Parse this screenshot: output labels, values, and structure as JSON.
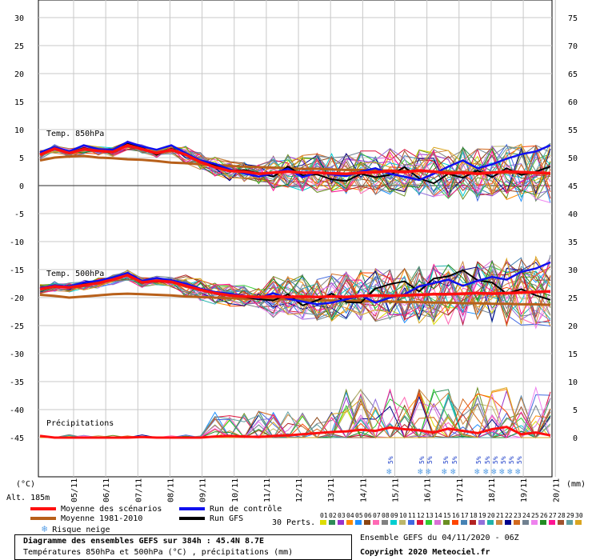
{
  "chart_data": {
    "type": "line",
    "left_axis_ticks": [
      "30",
      "25",
      "20",
      "15",
      "10",
      "5",
      "0",
      "-5",
      "-10",
      "-15",
      "-20",
      "-25",
      "-30",
      "-35",
      "-40",
      "-45"
    ],
    "right_axis_ticks": [
      "75",
      "70",
      "65",
      "60",
      "55",
      "50",
      "45",
      "40",
      "35",
      "30",
      "25",
      "20",
      "15",
      "10",
      "5",
      "0"
    ],
    "left_axis_unit": "(°C)",
    "right_axis_unit": "(mm)",
    "altitude_label": "Alt. 185m",
    "x_tick_labels": [
      "05/11",
      "06/11",
      "07/11",
      "08/11",
      "09/11",
      "10/11",
      "11/11",
      "12/11",
      "13/11",
      "14/11",
      "15/11",
      "16/11",
      "17/11",
      "18/11",
      "19/11",
      "20/11"
    ],
    "panel_labels": {
      "t850": "Temp. 850hPa",
      "t500": "Temp. 500hPa",
      "precip": "Précipitations"
    },
    "snow_risk_label": "5%",
    "series": [
      {
        "name": "Moyenne des scénarios",
        "color": "#ff1010"
      },
      {
        "name": "Moyenne 1981-2010",
        "color": "#b8601a"
      },
      {
        "name": "Run de contrôle",
        "color": "#1010ee"
      },
      {
        "name": "Run GFS",
        "color": "#000000"
      }
    ],
    "t850": {
      "mean": [
        5.5,
        6.6,
        5.8,
        6.5,
        6.2,
        6.0,
        7.2,
        6.5,
        5.8,
        6.4,
        5.5,
        4.2,
        3.3,
        2.6,
        2.5,
        2.1,
        2.3,
        2.5,
        2.3,
        2.3,
        2.2,
        2.1,
        2.3,
        2.4,
        2.6,
        2.4,
        2.7,
        2.5,
        2.2,
        2.3,
        2.1,
        2.3,
        2.5,
        2.4,
        2.3,
        2.2
      ],
      "clim": [
        4.5,
        5.0,
        5.2,
        5.3,
        5.0,
        4.9,
        4.7,
        4.6,
        4.4,
        4.1,
        4.0,
        3.8,
        3.7,
        3.5,
        3.4,
        3.3,
        3.2,
        3.1,
        3.0,
        3.0,
        2.9,
        2.8,
        2.8,
        2.7,
        2.7,
        2.6,
        2.6,
        2.5,
        2.5,
        2.4,
        2.4,
        2.3,
        2.3,
        2.2,
        2.2,
        2.1
      ],
      "control": [
        5.9,
        6.9,
        6.1,
        7.2,
        6.5,
        6.4,
        7.8,
        7.0,
        6.4,
        7.2,
        5.8,
        4.5,
        3.9,
        2.9,
        2.2,
        1.6,
        2.2,
        3.0,
        1.5,
        2.4,
        2.0,
        1.7,
        2.5,
        3.1,
        2.1,
        1.6,
        1.0,
        2.1,
        3.4,
        4.5,
        3.1,
        3.8,
        4.8,
        5.6,
        6.1,
        7.2
      ],
      "gfs": [
        5.6,
        6.7,
        5.9,
        6.7,
        6.2,
        5.9,
        7.5,
        6.8,
        5.5,
        6.6,
        5.4,
        4.4,
        3.6,
        2.6,
        2.8,
        2.2,
        1.6,
        3.4,
        1.8,
        2.0,
        1.1,
        0.8,
        2.1,
        1.5,
        1.9,
        3.3,
        1.3,
        0.4,
        2.1,
        1.4,
        2.7,
        1.5,
        3.1,
        1.9,
        2.5,
        3.4
      ]
    },
    "t500": {
      "mean": [
        -18.5,
        -18.0,
        -18.2,
        -17.8,
        -17.4,
        -16.8,
        -16.0,
        -17.3,
        -17.0,
        -17.2,
        -17.9,
        -18.6,
        -19.2,
        -19.6,
        -19.8,
        -19.9,
        -19.8,
        -19.9,
        -19.8,
        -19.9,
        -19.8,
        -19.9,
        -19.7,
        -19.6,
        -19.7,
        -19.6,
        -19.5,
        -19.4,
        -19.4,
        -19.3,
        -19.2,
        -19.3,
        -19.2,
        -19.1,
        -19.0,
        -18.9
      ],
      "clim": [
        -19.5,
        -19.7,
        -20.0,
        -19.8,
        -19.6,
        -19.4,
        -19.3,
        -19.4,
        -19.5,
        -19.6,
        -19.8,
        -19.9,
        -20.0,
        -20.1,
        -20.2,
        -20.2,
        -20.3,
        -20.3,
        -20.4,
        -20.5,
        -20.5,
        -20.6,
        -20.6,
        -20.7,
        -20.7,
        -20.8,
        -20.8,
        -20.9,
        -20.9,
        -21.0,
        -21.0,
        -21.1,
        -21.1,
        -21.2,
        -21.2,
        -21.3
      ],
      "control": [
        -18.3,
        -17.8,
        -18.0,
        -17.3,
        -17.0,
        -16.4,
        -15.6,
        -17.0,
        -16.5,
        -16.9,
        -17.5,
        -18.4,
        -19.0,
        -19.3,
        -19.7,
        -20.1,
        -19.2,
        -20.2,
        -20.7,
        -21.2,
        -20.9,
        -20.3,
        -19.6,
        -20.9,
        -20.0,
        -19.4,
        -18.0,
        -17.4,
        -16.8,
        -17.9,
        -17.0,
        -16.3,
        -16.8,
        -15.4,
        -14.8,
        -13.7
      ],
      "gfs": [
        -18.4,
        -18.1,
        -18.1,
        -17.6,
        -17.2,
        -16.6,
        -15.9,
        -17.0,
        -17.2,
        -16.9,
        -18.0,
        -18.5,
        -19.1,
        -19.4,
        -19.9,
        -20.3,
        -20.5,
        -19.4,
        -21.4,
        -20.5,
        -19.3,
        -20.8,
        -20.9,
        -18.4,
        -17.6,
        -17.1,
        -18.9,
        -16.6,
        -16.2,
        -15.1,
        -16.9,
        -17.3,
        -19.3,
        -18.5,
        -19.6,
        -20.4
      ]
    },
    "precip_mean": [
      0.3,
      0,
      0,
      0,
      0,
      0,
      0,
      0.1,
      0,
      0,
      0,
      0,
      0.2,
      0.3,
      0.2,
      0.1,
      0.3,
      0.4,
      0.6,
      0.8,
      1.0,
      1.1,
      1.4,
      1.2,
      1.8,
      1.5,
      1.3,
      0.9,
      1.6,
      1.2,
      0.8,
      1.5,
      1.9,
      0.6,
      0.9,
      0.4
    ],
    "member_colors": [
      "#dddd00",
      "#2e8b57",
      "#9932cc",
      "#ff8c00",
      "#1e90ff",
      "#8b4513",
      "#ff69b4",
      "#808080",
      "#00ced1",
      "#bdb76b",
      "#4169e1",
      "#dc143c",
      "#32cd32",
      "#da70d6",
      "#6b8e23",
      "#ff4500",
      "#4682b4",
      "#b22222",
      "#9370db",
      "#20b2aa",
      "#cd853f",
      "#00008b",
      "#d2691e",
      "#708090",
      "#ee82ee",
      "#228b22",
      "#ff1493",
      "#a0522d",
      "#5f9ea0",
      "#daa520"
    ],
    "pert_numbers": [
      "01",
      "02",
      "03",
      "04",
      "05",
      "06",
      "07",
      "08",
      "09",
      "10",
      "11",
      "12",
      "13",
      "14",
      "15",
      "16",
      "17",
      "18",
      "19",
      "20",
      "21",
      "22",
      "23",
      "24",
      "25",
      "26",
      "27",
      "28",
      "29",
      "30"
    ],
    "pert_label": "30 Perts.",
    "legend_risk": "Risque neige"
  },
  "footer": {
    "title": "Diagramme des ensembles GEFS sur 384h : 45.4N 8.7E",
    "subtitle": "Températures 850hPa et 500hPa (°C) , précipitations (mm)",
    "run_info": "Ensemble GEFS du 04/11/2020 - 06Z",
    "copyright": "Copyright 2020 Meteociel.fr"
  }
}
